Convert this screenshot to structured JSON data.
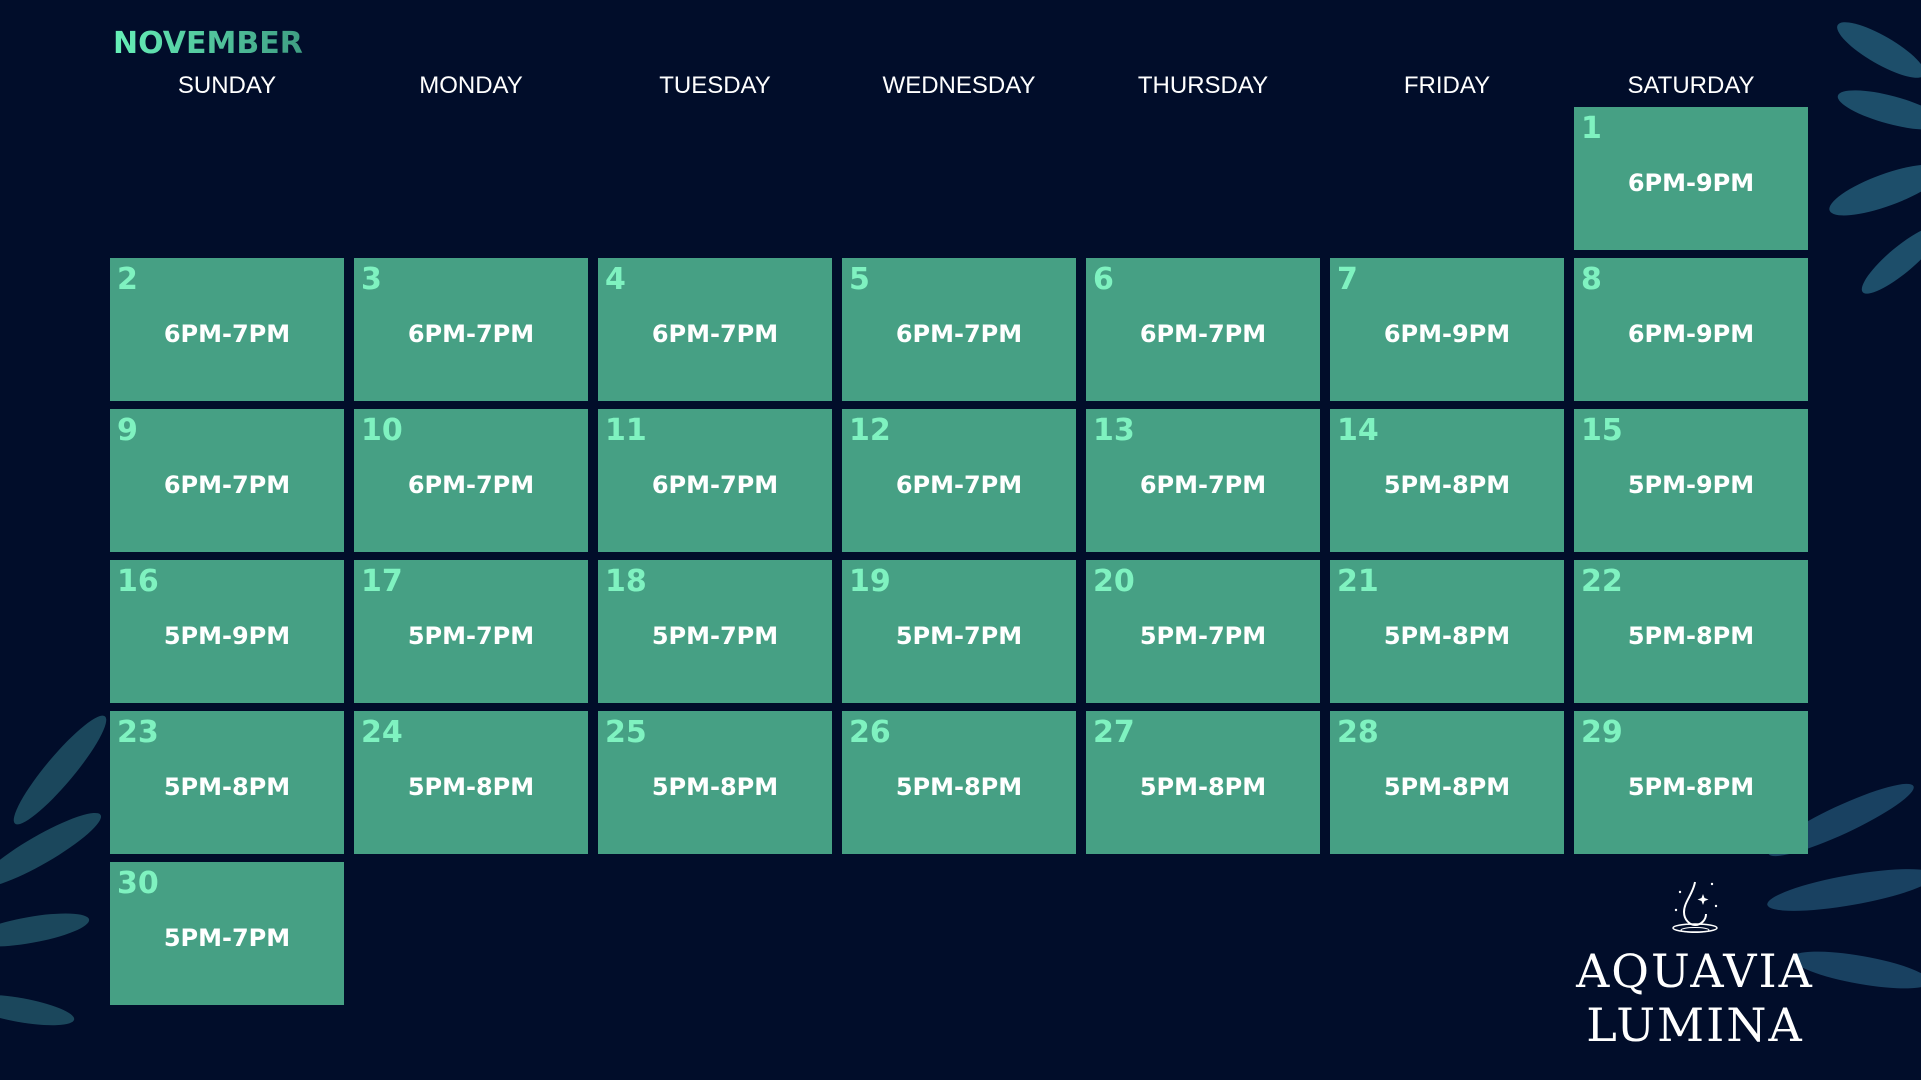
{
  "calendar": {
    "month": "NOVEMBER",
    "weekdays": [
      "SUNDAY",
      "MONDAY",
      "TUESDAY",
      "WEDNESDAY",
      "THURSDAY",
      "FRIDAY",
      "SATURDAY"
    ],
    "first_weekday_index": 6,
    "days": [
      {
        "day": "1",
        "hours": "6PM-9PM"
      },
      {
        "day": "2",
        "hours": "6PM-7PM"
      },
      {
        "day": "3",
        "hours": "6PM-7PM"
      },
      {
        "day": "4",
        "hours": "6PM-7PM"
      },
      {
        "day": "5",
        "hours": "6PM-7PM"
      },
      {
        "day": "6",
        "hours": "6PM-7PM"
      },
      {
        "day": "7",
        "hours": "6PM-9PM"
      },
      {
        "day": "8",
        "hours": "6PM-9PM"
      },
      {
        "day": "9",
        "hours": "6PM-7PM"
      },
      {
        "day": "10",
        "hours": "6PM-7PM"
      },
      {
        "day": "11",
        "hours": "6PM-7PM"
      },
      {
        "day": "12",
        "hours": "6PM-7PM"
      },
      {
        "day": "13",
        "hours": "6PM-7PM"
      },
      {
        "day": "14",
        "hours": "5PM-8PM"
      },
      {
        "day": "15",
        "hours": "5PM-9PM"
      },
      {
        "day": "16",
        "hours": "5PM-9PM"
      },
      {
        "day": "17",
        "hours": "5PM-7PM"
      },
      {
        "day": "18",
        "hours": "5PM-7PM"
      },
      {
        "day": "19",
        "hours": "5PM-7PM"
      },
      {
        "day": "20",
        "hours": "5PM-7PM"
      },
      {
        "day": "21",
        "hours": "5PM-8PM"
      },
      {
        "day": "22",
        "hours": "5PM-8PM"
      },
      {
        "day": "23",
        "hours": "5PM-8PM"
      },
      {
        "day": "24",
        "hours": "5PM-8PM"
      },
      {
        "day": "25",
        "hours": "5PM-8PM"
      },
      {
        "day": "26",
        "hours": "5PM-8PM"
      },
      {
        "day": "27",
        "hours": "5PM-8PM"
      },
      {
        "day": "28",
        "hours": "5PM-8PM"
      },
      {
        "day": "29",
        "hours": "5PM-8PM"
      },
      {
        "day": "30",
        "hours": "5PM-7PM"
      }
    ]
  },
  "brand": {
    "line1": "AQUAVIA",
    "line2": "LUMINA",
    "icon": "water-drop-icon"
  },
  "colors": {
    "background": "#010d2a",
    "cell": "#46a084",
    "day_number": "#7ff2c0",
    "month": "#5fe3ae"
  }
}
